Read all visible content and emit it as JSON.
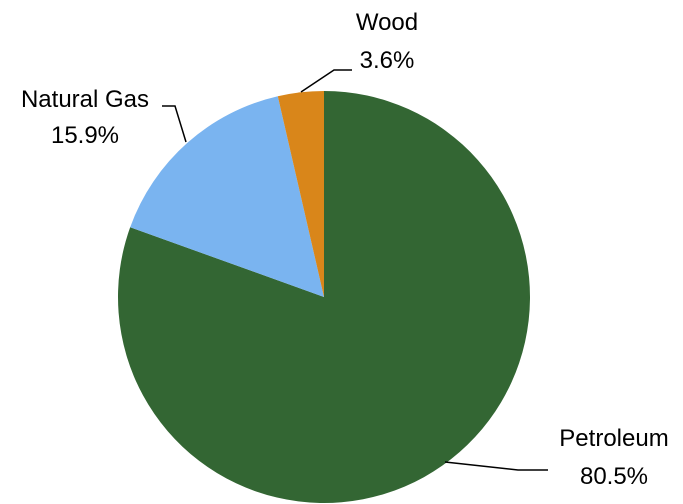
{
  "chart_data": {
    "type": "pie",
    "title": "",
    "slices": [
      {
        "name": "Petroleum",
        "value": 80.5,
        "label": "80.5%",
        "color": "#336633"
      },
      {
        "name": "Natural Gas",
        "value": 15.9,
        "label": "15.9%",
        "color": "#7ab4f0"
      },
      {
        "name": "Wood",
        "value": 3.6,
        "label": "3.6%",
        "color": "#d9861a"
      }
    ],
    "start_angle_deg": 0,
    "direction": "clockwise",
    "legend": "none"
  }
}
